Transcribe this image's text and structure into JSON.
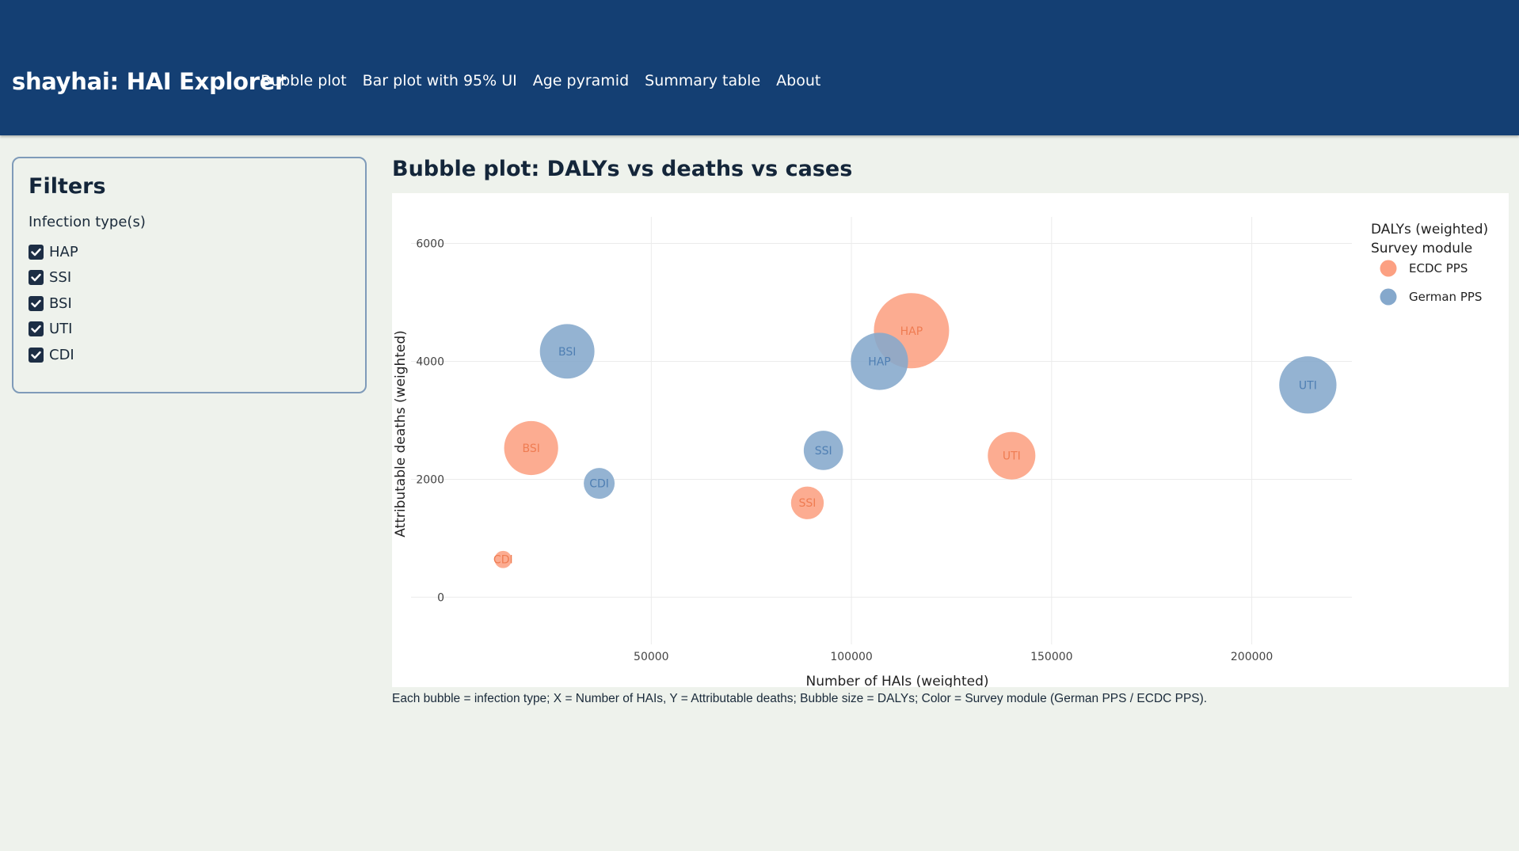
{
  "app": {
    "brand": "shayhai: HAI Explorer",
    "nav": [
      "Bubble plot",
      "Bar plot with 95% UI",
      "Age pyramid",
      "Summary table",
      "About"
    ]
  },
  "sidebar": {
    "title": "Filters",
    "label": "Infection type(s)",
    "options": [
      {
        "label": "HAP",
        "checked": true
      },
      {
        "label": "SSI",
        "checked": true
      },
      {
        "label": "BSI",
        "checked": true
      },
      {
        "label": "UTI",
        "checked": true
      },
      {
        "label": "CDI",
        "checked": true
      }
    ]
  },
  "main": {
    "title": "Bubble plot: DALYs vs deaths vs cases",
    "caption": "Each bubble = infection type; X = Number of HAIs, Y = Attributable deaths; Bubble size = DALYs; Color = Survey module (German PPS / ECDC PPS)."
  },
  "colors": {
    "ecdc": "#fca082",
    "german": "#85a8cc",
    "ecdc_text": "#ef7c52",
    "german_text": "#4f7fb3"
  },
  "chart_data": {
    "type": "scatter",
    "xlabel": "Number of HAIs (weighted)",
    "ylabel": "Attributable deaths (weighted)",
    "xticks": [
      50000,
      100000,
      150000,
      200000
    ],
    "yticks": [
      0,
      2000,
      4000,
      6000
    ],
    "xlim": [
      -10000,
      225000
    ],
    "ylim": [
      -800,
      6450
    ],
    "grid": true,
    "legend": {
      "title": "DALYs (weighted)",
      "subtitle": "Survey module",
      "position": "right"
    },
    "series": [
      {
        "name": "ECDC PPS",
        "color": "#fca082",
        "points": [
          {
            "label": "HAP",
            "x": 115000,
            "y": 4520,
            "size": 95000
          },
          {
            "label": "BSI",
            "x": 20000,
            "y": 2530,
            "size": 49000
          },
          {
            "label": "SSI",
            "x": 89000,
            "y": 1600,
            "size": 18000
          },
          {
            "label": "UTI",
            "x": 140000,
            "y": 2400,
            "size": 38000
          },
          {
            "label": "CDI",
            "x": 13000,
            "y": 640,
            "size": 5000
          }
        ]
      },
      {
        "name": "German PPS",
        "color": "#85a8cc",
        "points": [
          {
            "label": "HAP",
            "x": 107000,
            "y": 4000,
            "size": 55000
          },
          {
            "label": "BSI",
            "x": 29000,
            "y": 4170,
            "size": 50000
          },
          {
            "label": "SSI",
            "x": 93000,
            "y": 2490,
            "size": 26000
          },
          {
            "label": "UTI",
            "x": 214000,
            "y": 3600,
            "size": 55000
          },
          {
            "label": "CDI",
            "x": 37000,
            "y": 1930,
            "size": 16000
          }
        ]
      }
    ]
  }
}
